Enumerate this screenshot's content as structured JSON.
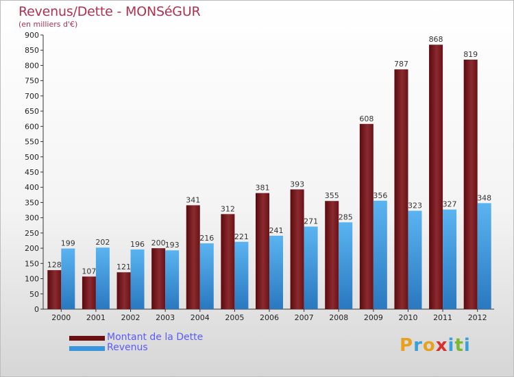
{
  "header": {
    "title": "Revenus/Dette - MONSéGUR",
    "subtitle": "(en milliers d'€)"
  },
  "chart_data": {
    "type": "bar",
    "title": "Revenus/Dette - MONSéGUR",
    "ylabel": "(en milliers d'€)",
    "xlabel": "",
    "ylim": [
      0,
      900
    ],
    "ytick_step": 50,
    "grid": false,
    "legend_position": "bottom-left",
    "categories": [
      "2000",
      "2001",
      "2002",
      "2003",
      "2004",
      "2005",
      "2006",
      "2007",
      "2008",
      "2009",
      "2010",
      "2011",
      "2012"
    ],
    "series": [
      {
        "name": "Montant de la Dette",
        "color": "#7a1a1f",
        "values": [
          128,
          107,
          121,
          200,
          341,
          312,
          381,
          393,
          355,
          608,
          787,
          868,
          819
        ]
      },
      {
        "name": "Revenus",
        "color": "#3a96dc",
        "values": [
          199,
          202,
          196,
          193,
          216,
          221,
          241,
          271,
          285,
          356,
          323,
          327,
          348
        ]
      }
    ]
  },
  "legend": {
    "items": [
      {
        "label": "Montant de la Dette",
        "color": "#6a0f12"
      },
      {
        "label": "Revenus",
        "color": "#3a96dc"
      }
    ]
  },
  "logo": {
    "letters": [
      "P",
      "r",
      "o",
      "x",
      "i",
      "t",
      "i"
    ],
    "colors": [
      "#e8a020",
      "#3aa0d8",
      "#e8a020",
      "#d8302a",
      "#3aa0d8",
      "#7ab830",
      "#3aa0d8"
    ]
  }
}
